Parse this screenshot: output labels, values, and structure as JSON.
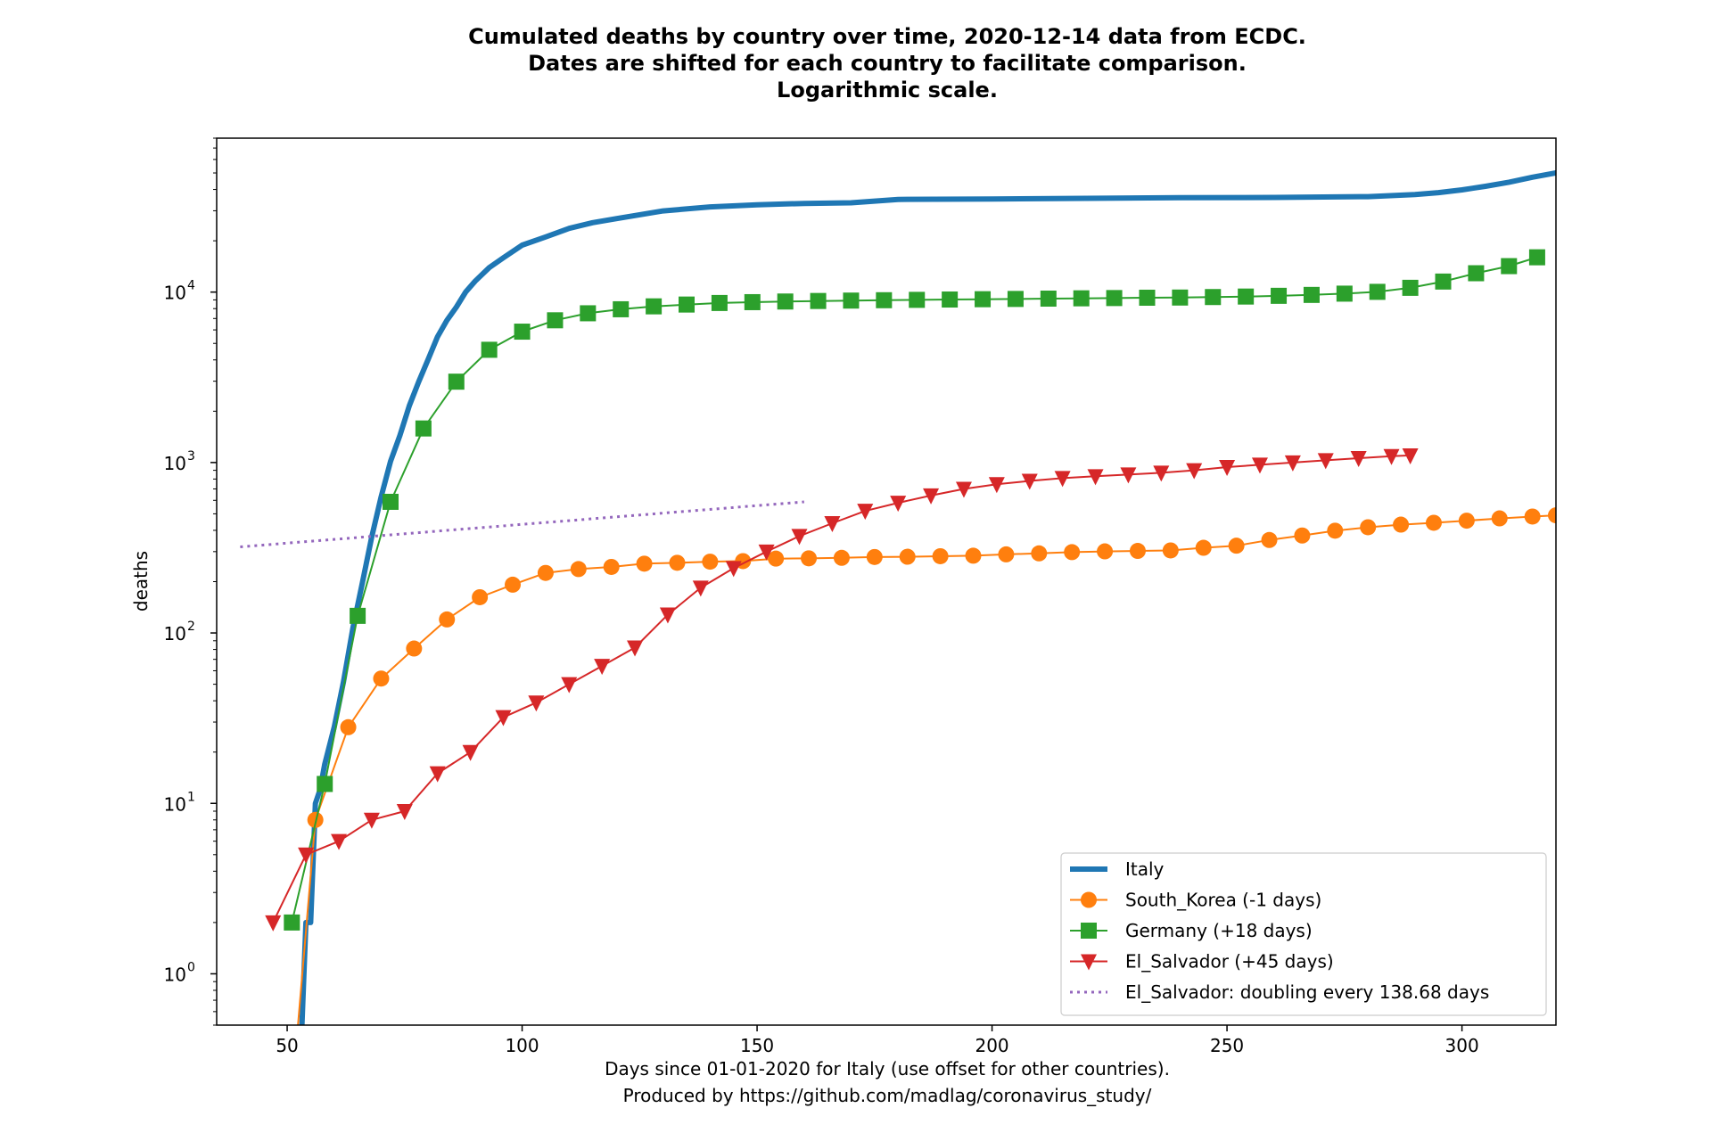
{
  "chart_data": {
    "type": "line",
    "title_lines": [
      "Cumulated deaths by country over time, 2020-12-14 data from ECDC.",
      "Dates are shifted for each country to facilitate comparison.",
      "Logarithmic scale."
    ],
    "xlabel_lines": [
      "Days since 01-01-2020 for Italy (use offset for other countries).",
      "Produced by https://github.com/madlag/coronavirus_study/"
    ],
    "ylabel": "deaths",
    "xlim": [
      35,
      320
    ],
    "ylim": [
      0.5,
      80000
    ],
    "yscale": "log",
    "x_ticks": [
      50,
      100,
      150,
      200,
      250,
      300
    ],
    "y_ticks": [
      {
        "value": 1,
        "base": "10",
        "exp": "0"
      },
      {
        "value": 10,
        "base": "10",
        "exp": "1"
      },
      {
        "value": 100,
        "base": "10",
        "exp": "2"
      },
      {
        "value": 1000,
        "base": "10",
        "exp": "3"
      },
      {
        "value": 10000,
        "base": "10",
        "exp": "4"
      }
    ],
    "legend_position": "lower right",
    "series": [
      {
        "name": "Italy",
        "color": "#1f77b4",
        "marker": "none",
        "line_style": "solid-thick",
        "x": [
          53,
          54,
          55,
          56,
          57,
          58,
          60,
          62,
          64,
          66,
          68,
          70,
          72,
          74,
          76,
          78,
          80,
          82,
          84,
          86,
          88,
          90,
          93,
          96,
          100,
          105,
          110,
          115,
          120,
          130,
          140,
          150,
          160,
          170,
          180,
          200,
          220,
          240,
          260,
          280,
          290,
          295,
          300,
          305,
          310,
          315,
          320
        ],
        "y": [
          0.4,
          2,
          2,
          10,
          12,
          17,
          28,
          52,
          107,
          197,
          366,
          631,
          1016,
          1441,
          2158,
          2978,
          4032,
          5476,
          6820,
          8165,
          10023,
          11591,
          13915,
          15887,
          18849,
          21067,
          23660,
          25549,
          26977,
          29958,
          31610,
          32486,
          33142,
          33415,
          34984,
          35173,
          35477,
          35781,
          35918,
          36289,
          37338,
          38321,
          39764,
          41750,
          44139,
          47217,
          50000
        ]
      },
      {
        "name": "South_Korea (-1 days)",
        "color": "#ff7f0e",
        "marker": "circle",
        "x": [
          52,
          56,
          63,
          70,
          77,
          84,
          91,
          98,
          105,
          112,
          119,
          126,
          133,
          140,
          147,
          154,
          161,
          168,
          175,
          182,
          189,
          196,
          203,
          210,
          217,
          224,
          231,
          238,
          245,
          252,
          259,
          266,
          273,
          280,
          287,
          294,
          301,
          308,
          315,
          320
        ],
        "y": [
          0.4,
          8,
          28,
          54,
          81,
          120,
          162,
          192,
          225,
          237,
          244,
          255,
          258,
          262,
          264,
          273,
          274,
          276,
          279,
          280,
          282,
          284,
          289,
          293,
          298,
          301,
          303,
          305,
          316,
          325,
          351,
          373,
          398,
          417,
          432,
          443,
          456,
          470,
          482,
          490
        ]
      },
      {
        "name": "Germany (+18 days)",
        "color": "#2ca02c",
        "marker": "square",
        "x": [
          51,
          58,
          65,
          72,
          79,
          86,
          93,
          100,
          107,
          114,
          121,
          128,
          135,
          142,
          149,
          156,
          163,
          170,
          177,
          184,
          191,
          198,
          205,
          212,
          219,
          226,
          233,
          240,
          247,
          254,
          261,
          268,
          275,
          282,
          289,
          296,
          303,
          310,
          316
        ],
        "y": [
          2,
          13,
          126,
          588,
          1584,
          2981,
          4586,
          5860,
          6831,
          7510,
          7928,
          8247,
          8450,
          8630,
          8728,
          8803,
          8867,
          8914,
          8960,
          9003,
          9044,
          9082,
          9115,
          9154,
          9192,
          9225,
          9267,
          9289,
          9352,
          9414,
          9508,
          9625,
          9791,
          10032,
          10594,
          11529,
          12900,
          14200,
          16000
        ]
      },
      {
        "name": "El_Salvador (+45 days)",
        "color": "#d62728",
        "marker": "triangle-down",
        "x": [
          47,
          54,
          61,
          68,
          75,
          82,
          89,
          96,
          103,
          110,
          117,
          124,
          131,
          138,
          145,
          152,
          159,
          166,
          173,
          180,
          187,
          194,
          201,
          208,
          215,
          222,
          229,
          236,
          243,
          250,
          257,
          264,
          271,
          278,
          285,
          289
        ],
        "y": [
          2,
          5,
          6,
          8,
          9,
          15,
          20,
          32,
          39,
          50,
          64,
          82,
          128,
          184,
          240,
          300,
          370,
          440,
          520,
          580,
          640,
          700,
          745,
          780,
          810,
          830,
          850,
          870,
          900,
          940,
          970,
          1000,
          1030,
          1060,
          1090,
          1100
        ]
      },
      {
        "name": "El_Salvador: doubling every 138.68 days",
        "color": "#9467bd",
        "marker": "none",
        "line_style": "dotted",
        "x": [
          40,
          160
        ],
        "y": [
          320,
          588
        ]
      }
    ]
  }
}
